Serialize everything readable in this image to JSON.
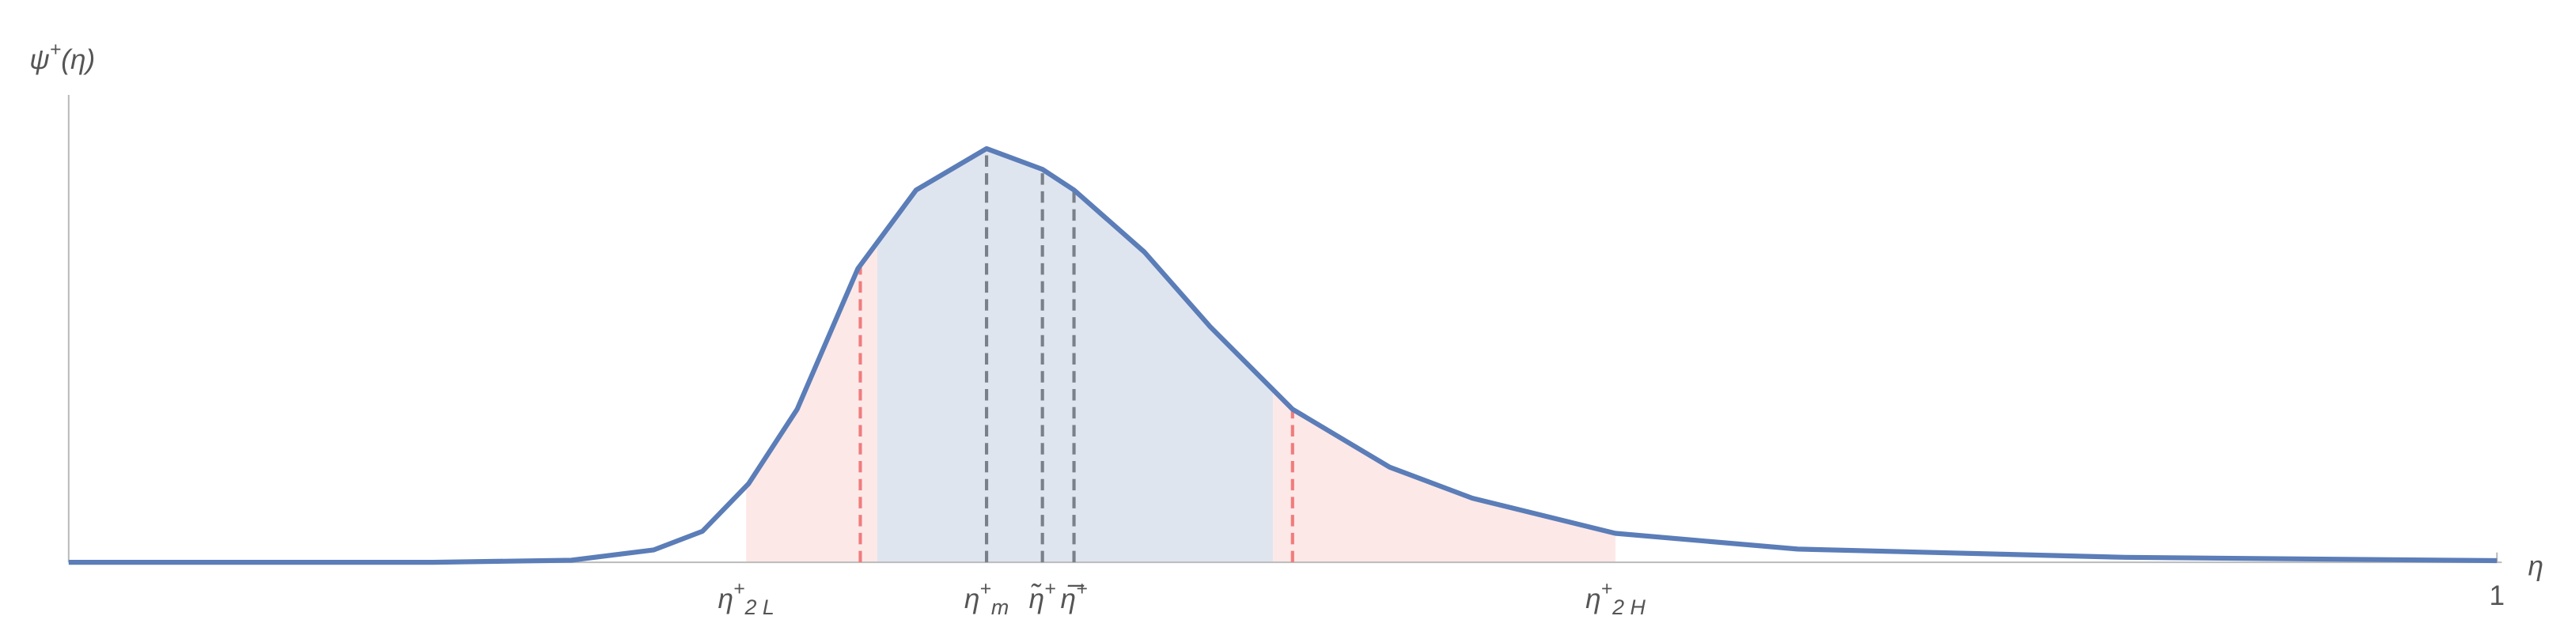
{
  "chart_data": {
    "type": "line",
    "y_label": {
      "base": "ψ",
      "sup": "+",
      "rest": "(η)"
    },
    "x_label": "η",
    "xlim": [
      0,
      1
    ],
    "ylim": [
      0,
      1.13
    ],
    "xticks": [
      1
    ],
    "x": [
      0,
      0.15,
      0.207,
      0.241,
      0.261,
      0.28,
      0.3,
      0.325,
      0.349,
      0.378,
      0.401,
      0.414,
      0.443,
      0.47,
      0.504,
      0.544,
      0.578,
      0.637,
      0.712,
      0.847,
      1
    ],
    "series": [
      {
        "color": "#5b7db8",
        "values": [
          0,
          0,
          0.005,
          0.03,
          0.075,
          0.19,
          0.37,
          0.71,
          0.9,
          1,
          0.95,
          0.9,
          0.75,
          0.57,
          0.37,
          0.23,
          0.155,
          0.07,
          0.032,
          0.012,
          0.004
        ]
      }
    ],
    "shaded_regions": [
      {
        "from": 0.279,
        "to": 0.333,
        "color": "#fde8e8"
      },
      {
        "from": 0.333,
        "to": 0.496,
        "color": "#dfe5ef"
      },
      {
        "from": 0.496,
        "to": 0.637,
        "color": "#fde8e8"
      }
    ],
    "dashed_lines": [
      {
        "x": 0.326,
        "color": "#f07c7c"
      },
      {
        "x": 0.504,
        "color": "#f07c7c"
      },
      {
        "x": 0.378,
        "color": "#7a808a"
      },
      {
        "x": 0.401,
        "color": "#7a808a"
      },
      {
        "x": 0.414,
        "color": "#7a808a"
      }
    ],
    "markers": [
      {
        "value": 0.279,
        "base": "η",
        "sup": "+",
        "sub": "2 L"
      },
      {
        "value": 0.378,
        "base": "η",
        "sup": "+",
        "sub": "m"
      },
      {
        "value": 0.401,
        "base": "η̃",
        "sup": "+",
        "sub": ""
      },
      {
        "value": 0.414,
        "base": "η̅",
        "sup": "+",
        "sub": ""
      },
      {
        "value": 0.637,
        "base": "η",
        "sup": "+",
        "sub": "2 H"
      }
    ]
  }
}
